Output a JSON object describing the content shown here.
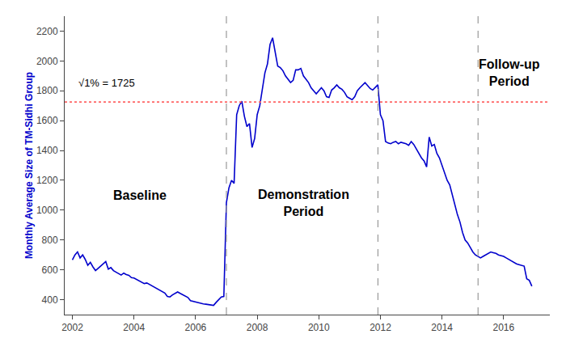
{
  "chart_data": {
    "type": "line",
    "y_label": "Monthly Average Size of TM-Sidhi Group",
    "color": "#0000CC",
    "line_style": "solid",
    "grid": false,
    "xlim": [
      2001.75,
      2017.5
    ],
    "ylim": [
      300,
      2300
    ],
    "xticks": [
      2002,
      2004,
      2006,
      2008,
      2010,
      2012,
      2014,
      2016
    ],
    "yticks": [
      400,
      600,
      800,
      1000,
      1200,
      1400,
      1600,
      1800,
      2000,
      2200
    ],
    "hline": {
      "value": 1725,
      "color": "#FF6666",
      "line_style": "dotted"
    },
    "vlines": {
      "values": [
        2007.0,
        2011.92,
        2015.17
      ],
      "color": "#999999",
      "line_style": "dashed"
    },
    "annotations": [
      {
        "text": "Baseline",
        "x": 2004.2,
        "y": 1100,
        "align": "center"
      },
      {
        "text": "Demonstration\nPeriod",
        "x": 2009.5,
        "y": 1050,
        "align": "center"
      },
      {
        "text": "Follow-up\nPeriod",
        "x": 2016.2,
        "y": 1920,
        "align": "center"
      },
      {
        "text": "√1% = 1725",
        "x": 2002.15,
        "y": 1800,
        "align": "left"
      }
    ],
    "x": [
      2002.0,
      2002.0833333333333,
      2002.1666666666667,
      2002.25,
      2002.3333333333333,
      2002.4166666666667,
      2002.5,
      2002.5833333333333,
      2002.6666666666667,
      2002.75,
      2002.8333333333333,
      2002.9166666666667,
      2003.0,
      2003.0833333333333,
      2003.1666666666667,
      2003.25,
      2003.3333333333333,
      2003.4166666666667,
      2003.5,
      2003.5833333333333,
      2003.6666666666667,
      2003.75,
      2003.8333333333333,
      2003.9166666666667,
      2004.0,
      2004.0833333333333,
      2004.1666666666667,
      2004.25,
      2004.3333333333333,
      2004.4166666666667,
      2004.5,
      2004.5833333333333,
      2004.6666666666667,
      2004.75,
      2004.8333333333333,
      2004.9166666666667,
      2005.0,
      2005.0833333333333,
      2005.1666666666667,
      2005.25,
      2005.3333333333333,
      2005.4166666666667,
      2005.5,
      2005.5833333333333,
      2005.6666666666667,
      2005.75,
      2005.8333333333333,
      2005.9166666666667,
      2006.0,
      2006.0833333333333,
      2006.1666666666667,
      2006.25,
      2006.3333333333333,
      2006.4166666666667,
      2006.5,
      2006.5833333333333,
      2006.6666666666667,
      2006.75,
      2006.8333333333333,
      2006.9166666666667,
      2007.0,
      2007.0833333333333,
      2007.1666666666667,
      2007.25,
      2007.3333333333333,
      2007.4166666666667,
      2007.5,
      2007.5833333333333,
      2007.6666666666667,
      2007.75,
      2007.8333333333333,
      2007.9166666666667,
      2008.0,
      2008.0833333333333,
      2008.1666666666667,
      2008.25,
      2008.3333333333333,
      2008.4166666666667,
      2008.5,
      2008.5833333333333,
      2008.6666666666667,
      2008.75,
      2008.8333333333333,
      2008.9166666666667,
      2009.0,
      2009.0833333333333,
      2009.1666666666667,
      2009.25,
      2009.3333333333333,
      2009.4166666666667,
      2009.5,
      2009.5833333333333,
      2009.6666666666667,
      2009.75,
      2009.8333333333333,
      2009.9166666666667,
      2010.0,
      2010.0833333333333,
      2010.1666666666667,
      2010.25,
      2010.3333333333333,
      2010.4166666666667,
      2010.5,
      2010.5833333333333,
      2010.6666666666667,
      2010.75,
      2010.8333333333333,
      2010.9166666666667,
      2011.0,
      2011.0833333333333,
      2011.1666666666667,
      2011.25,
      2011.3333333333333,
      2011.4166666666667,
      2011.5,
      2011.5833333333333,
      2011.6666666666667,
      2011.75,
      2011.8333333333333,
      2011.9166666666667,
      2012.0,
      2012.0833333333333,
      2012.1666666666667,
      2012.25,
      2012.3333333333333,
      2012.4166666666667,
      2012.5,
      2012.5833333333333,
      2012.6666666666667,
      2012.75,
      2012.8333333333333,
      2012.9166666666667,
      2013.0,
      2013.0833333333333,
      2013.1666666666667,
      2013.25,
      2013.3333333333333,
      2013.4166666666667,
      2013.5,
      2013.5833333333333,
      2013.6666666666667,
      2013.75,
      2013.8333333333333,
      2013.9166666666667,
      2014.0,
      2014.0833333333333,
      2014.1666666666667,
      2014.25,
      2014.3333333333333,
      2014.4166666666667,
      2014.5,
      2014.5833333333333,
      2014.6666666666667,
      2014.75,
      2014.8333333333333,
      2014.9166666666667,
      2015.0,
      2015.0833333333333,
      2015.1666666666667,
      2015.25,
      2015.3333333333333,
      2015.4166666666667,
      2015.5,
      2015.5833333333333,
      2015.6666666666667,
      2015.75,
      2015.8333333333333,
      2015.9166666666667,
      2016.0,
      2016.0833333333333,
      2016.1666666666667,
      2016.25,
      2016.3333333333333,
      2016.4166666666667,
      2016.5,
      2016.5833333333333,
      2016.6666666666667,
      2016.75,
      2016.8333333333333,
      2016.9166666666667
    ],
    "values": [
      666,
      700,
      720,
      680,
      700,
      670,
      630,
      650,
      620,
      595,
      610,
      625,
      640,
      655,
      605,
      615,
      595,
      585,
      575,
      565,
      578,
      568,
      563,
      548,
      545,
      535,
      525,
      515,
      508,
      512,
      502,
      492,
      485,
      475,
      463,
      452,
      445,
      422,
      418,
      432,
      442,
      452,
      442,
      432,
      425,
      415,
      393,
      388,
      385,
      380,
      377,
      372,
      370,
      367,
      365,
      362,
      382,
      402,
      418,
      422,
      1050,
      1150,
      1200,
      1180,
      1640,
      1700,
      1730,
      1630,
      1560,
      1580,
      1420,
      1480,
      1640,
      1700,
      1800,
      1920,
      1980,
      2110,
      2155,
      2060,
      1965,
      1955,
      1935,
      1900,
      1875,
      1855,
      1870,
      1940,
      1940,
      1950,
      1900,
      1880,
      1855,
      1820,
      1800,
      1780,
      1800,
      1820,
      1800,
      1760,
      1755,
      1805,
      1820,
      1840,
      1820,
      1810,
      1790,
      1760,
      1750,
      1740,
      1760,
      1800,
      1820,
      1840,
      1855,
      1835,
      1815,
      1805,
      1825,
      1840,
      1640,
      1600,
      1460,
      1450,
      1445,
      1455,
      1460,
      1445,
      1455,
      1450,
      1445,
      1435,
      1460,
      1440,
      1410,
      1380,
      1350,
      1330,
      1290,
      1490,
      1430,
      1440,
      1380,
      1350,
      1300,
      1250,
      1200,
      1170,
      1100,
      1040,
      970,
      920,
      850,
      800,
      780,
      750,
      720,
      700,
      690,
      680,
      690,
      700,
      710,
      720,
      715,
      710,
      700,
      695,
      690,
      680,
      670,
      660,
      650,
      640,
      635,
      630,
      625,
      540,
      530,
      490
    ]
  }
}
